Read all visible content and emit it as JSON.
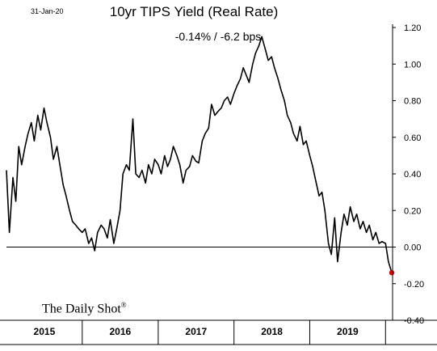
{
  "header": {
    "date_stamp": "31-Jan-20",
    "title": "10yr TIPS Yield (Real Rate)",
    "subtitle": "-0.14%  /  -6.2 bps"
  },
  "brand": {
    "name": "The Daily Shot",
    "mark": "®"
  },
  "colors": {
    "line": "#000000",
    "latest_point": "#e00000",
    "axis": "#000000",
    "background": "#ffffff"
  },
  "chart_data": {
    "type": "line",
    "title": "10yr TIPS Yield (Real Rate)",
    "subtitle": "-0.14%  /  -6.2 bps",
    "xlabel": "",
    "ylabel": "",
    "ylim": [
      -0.4,
      1.2
    ],
    "xlim": [
      "2015-01-01",
      "2020-01-31"
    ],
    "y_axis_position": "right",
    "y_ticks": [
      -0.4,
      -0.2,
      0.0,
      0.2,
      0.4,
      0.6,
      0.8,
      1.0,
      1.2
    ],
    "y_tick_labels": [
      "-0.40",
      "-0.20",
      "0.00",
      "0.20",
      "0.40",
      "0.60",
      "0.80",
      "1.00",
      "1.20"
    ],
    "x_categories": [
      "2015",
      "2016",
      "2017",
      "2018",
      "2019"
    ],
    "grid": false,
    "zero_line": true,
    "series": [
      {
        "x": [
          "2015-01-01",
          "2015-01-15",
          "2015-02-01",
          "2015-02-15",
          "2015-03-01",
          "2015-03-15",
          "2015-04-01",
          "2015-04-15",
          "2015-05-01",
          "2015-05-15",
          "2015-06-01",
          "2015-06-15",
          "2015-07-01",
          "2015-07-15",
          "2015-08-01",
          "2015-08-15",
          "2015-09-01",
          "2015-09-15",
          "2015-10-01",
          "2015-10-15",
          "2015-11-01",
          "2015-11-15",
          "2015-12-01",
          "2015-12-15",
          "2016-01-01",
          "2016-01-15",
          "2016-02-01",
          "2016-02-15",
          "2016-03-01",
          "2016-03-15",
          "2016-04-01",
          "2016-04-15",
          "2016-05-01",
          "2016-05-15",
          "2016-06-01",
          "2016-06-15",
          "2016-07-01",
          "2016-07-15",
          "2016-08-01",
          "2016-08-15",
          "2016-09-01",
          "2016-09-15",
          "2016-10-01",
          "2016-10-15",
          "2016-11-01",
          "2016-11-15",
          "2016-12-01",
          "2016-12-15",
          "2017-01-01",
          "2017-01-15",
          "2017-02-01",
          "2017-02-15",
          "2017-03-01",
          "2017-03-15",
          "2017-04-01",
          "2017-04-15",
          "2017-05-01",
          "2017-05-15",
          "2017-06-01",
          "2017-06-15",
          "2017-07-01",
          "2017-07-15",
          "2017-08-01",
          "2017-08-15",
          "2017-09-01",
          "2017-09-15",
          "2017-10-01",
          "2017-10-15",
          "2017-11-01",
          "2017-11-15",
          "2017-12-01",
          "2017-12-15",
          "2018-01-01",
          "2018-01-15",
          "2018-02-01",
          "2018-02-15",
          "2018-03-01",
          "2018-03-15",
          "2018-04-01",
          "2018-04-15",
          "2018-05-01",
          "2018-05-15",
          "2018-06-01",
          "2018-06-15",
          "2018-07-01",
          "2018-07-15",
          "2018-08-01",
          "2018-08-15",
          "2018-09-01",
          "2018-09-15",
          "2018-10-01",
          "2018-10-15",
          "2018-11-01",
          "2018-11-15",
          "2018-12-01",
          "2018-12-15",
          "2019-01-01",
          "2019-01-15",
          "2019-02-01",
          "2019-02-15",
          "2019-03-01",
          "2019-03-15",
          "2019-04-01",
          "2019-04-15",
          "2019-05-01",
          "2019-05-15",
          "2019-06-01",
          "2019-06-15",
          "2019-07-01",
          "2019-07-15",
          "2019-08-01",
          "2019-08-15",
          "2019-09-01",
          "2019-09-15",
          "2019-10-01",
          "2019-10-15",
          "2019-11-01",
          "2019-11-15",
          "2019-12-01",
          "2019-12-15",
          "2020-01-01",
          "2020-01-15",
          "2020-01-31"
        ],
        "values": [
          0.42,
          0.08,
          0.38,
          0.25,
          0.55,
          0.45,
          0.55,
          0.62,
          0.68,
          0.58,
          0.72,
          0.64,
          0.76,
          0.68,
          0.6,
          0.48,
          0.55,
          0.45,
          0.34,
          0.28,
          0.2,
          0.14,
          0.12,
          0.1,
          0.08,
          0.1,
          0.02,
          0.05,
          -0.02,
          0.08,
          0.12,
          0.1,
          0.05,
          0.15,
          0.02,
          0.1,
          0.2,
          0.4,
          0.45,
          0.42,
          0.7,
          0.4,
          0.38,
          0.42,
          0.35,
          0.45,
          0.4,
          0.48,
          0.45,
          0.4,
          0.5,
          0.44,
          0.48,
          0.55,
          0.5,
          0.45,
          0.35,
          0.42,
          0.44,
          0.5,
          0.47,
          0.46,
          0.58,
          0.62,
          0.65,
          0.78,
          0.72,
          0.74,
          0.76,
          0.8,
          0.82,
          0.78,
          0.84,
          0.88,
          0.92,
          0.98,
          0.94,
          0.9,
          1.0,
          1.06,
          1.1,
          1.15,
          1.08,
          1.02,
          1.04,
          0.98,
          0.92,
          0.86,
          0.8,
          0.72,
          0.68,
          0.62,
          0.58,
          0.66,
          0.56,
          0.58,
          0.5,
          0.44,
          0.35,
          0.28,
          0.3,
          0.2,
          0.02,
          -0.04,
          0.16,
          -0.08,
          0.08,
          0.18,
          0.12,
          0.22,
          0.14,
          0.18,
          0.1,
          0.14,
          0.08,
          0.12,
          0.04,
          0.08,
          0.02,
          0.03,
          0.02,
          -0.08,
          -0.14
        ]
      }
    ],
    "latest_value": -0.14,
    "latest_change_bps": -6.2
  }
}
